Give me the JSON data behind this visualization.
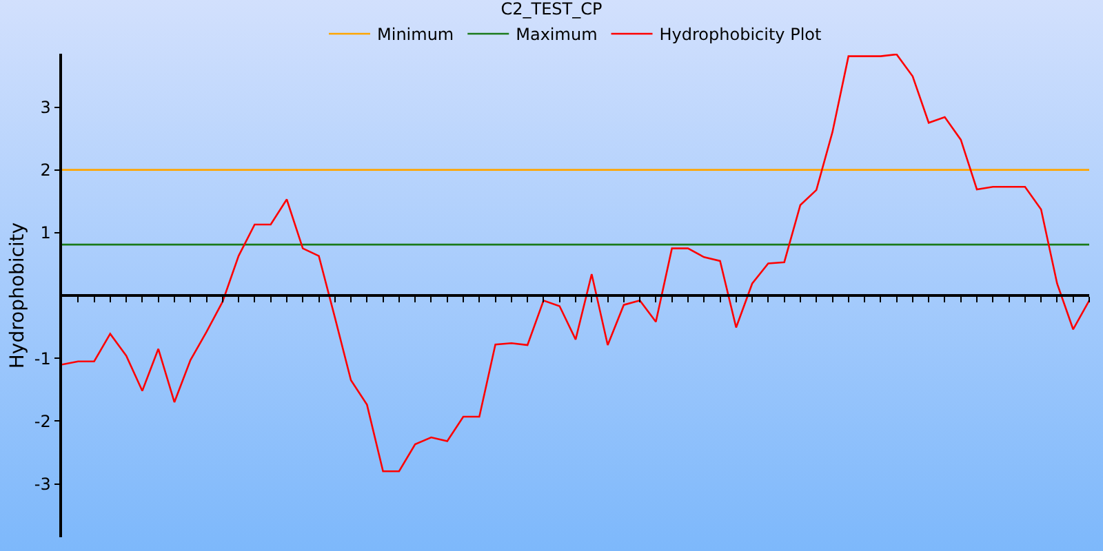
{
  "chart_data": {
    "type": "line",
    "title": "C2_TEST_CP",
    "ylabel": "Hydrophobicity",
    "categories": [
      null,
      null,
      null,
      null,
      null,
      null,
      null,
      null,
      null,
      null,
      null,
      null,
      null,
      null,
      null,
      null,
      null,
      null,
      null,
      null,
      null,
      null,
      null,
      null,
      null,
      null,
      null,
      null,
      null,
      null,
      null,
      null,
      null,
      null,
      null,
      null,
      null,
      null,
      null,
      null,
      null,
      null,
      null,
      null,
      null,
      null,
      null,
      null,
      null,
      null,
      null,
      null,
      null,
      null,
      null,
      null,
      null,
      null,
      null,
      null,
      null,
      null,
      null,
      null,
      null
    ],
    "series": [
      {
        "name": "Minimum",
        "color": "#ffa500",
        "values": [
          2,
          2,
          2,
          2,
          2,
          2,
          2,
          2,
          2,
          2,
          2,
          2,
          2,
          2,
          2,
          2,
          2,
          2,
          2,
          2,
          2,
          2,
          2,
          2,
          2,
          2,
          2,
          2,
          2,
          2,
          2,
          2,
          2,
          2,
          2,
          2,
          2,
          2,
          2,
          2,
          2,
          2,
          2,
          2,
          2,
          2,
          2,
          2,
          2,
          2,
          2,
          2,
          2,
          2,
          2,
          2,
          2,
          2,
          2,
          2,
          2,
          2,
          2,
          2,
          2
        ]
      },
      {
        "name": "Maximum",
        "color": "#1a7a1a",
        "values": [
          0.81,
          0.81,
          0.81,
          0.81,
          0.81,
          0.81,
          0.81,
          0.81,
          0.81,
          0.81,
          0.81,
          0.81,
          0.81,
          0.81,
          0.81,
          0.81,
          0.81,
          0.81,
          0.81,
          0.81,
          0.81,
          0.81,
          0.81,
          0.81,
          0.81,
          0.81,
          0.81,
          0.81,
          0.81,
          0.81,
          0.81,
          0.81,
          0.81,
          0.81,
          0.81,
          0.81,
          0.81,
          0.81,
          0.81,
          0.81,
          0.81,
          0.81,
          0.81,
          0.81,
          0.81,
          0.81,
          0.81,
          0.81,
          0.81,
          0.81,
          0.81,
          0.81,
          0.81,
          0.81,
          0.81,
          0.81,
          0.81,
          0.81,
          0.81,
          0.81,
          0.81,
          0.81,
          0.81,
          0.81,
          0.81
        ]
      },
      {
        "name": "Hydrophobicity Plot",
        "color": "#ff0000",
        "values": [
          -1.1,
          -1.05,
          -1.05,
          -0.61,
          -0.96,
          -1.52,
          -0.85,
          -1.7,
          -1.03,
          -0.58,
          -0.1,
          0.63,
          1.13,
          1.13,
          1.53,
          0.75,
          0.63,
          -0.35,
          -1.35,
          -1.74,
          -2.8,
          -2.8,
          -2.37,
          -2.26,
          -2.32,
          -1.93,
          -1.93,
          -0.78,
          -0.76,
          -0.79,
          -0.08,
          -0.17,
          -0.7,
          0.34,
          -0.79,
          -0.15,
          -0.08,
          -0.42,
          0.75,
          0.75,
          0.61,
          0.55,
          -0.51,
          0.19,
          0.51,
          0.53,
          1.44,
          1.68,
          2.6,
          3.81,
          3.81,
          3.81,
          3.84,
          3.49,
          2.75,
          2.84,
          2.48,
          1.69,
          1.73,
          1.73,
          1.73,
          1.37,
          0.19,
          -0.54,
          -0.08
        ]
      }
    ],
    "ylim": [
      -3.85,
      3.85
    ],
    "yticks": [
      -3,
      -2,
      -1,
      1,
      2,
      3
    ],
    "legend": "top",
    "marker": "none",
    "line_style": "solid"
  }
}
